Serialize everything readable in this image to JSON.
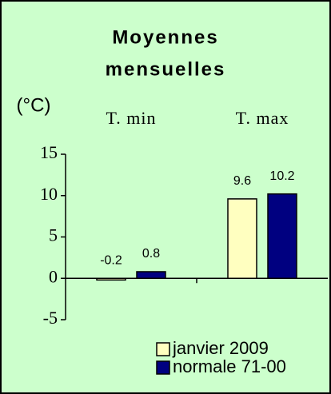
{
  "chart_data": {
    "type": "bar",
    "title": [
      "Moyennes",
      "mensuelles"
    ],
    "y_label": "(°C)",
    "categories": [
      "T. min",
      "T. max"
    ],
    "series": [
      {
        "name": "janvier 2009",
        "color": "#ffffc0",
        "values": [
          -0.2,
          9.6
        ]
      },
      {
        "name": "normale 71-00",
        "color": "#000080",
        "values": [
          0.8,
          10.2
        ]
      }
    ],
    "ylim": [
      -5,
      15
    ],
    "yticks": [
      -5,
      0,
      5,
      10,
      15
    ],
    "data_labels": true,
    "legend": "bottom"
  }
}
